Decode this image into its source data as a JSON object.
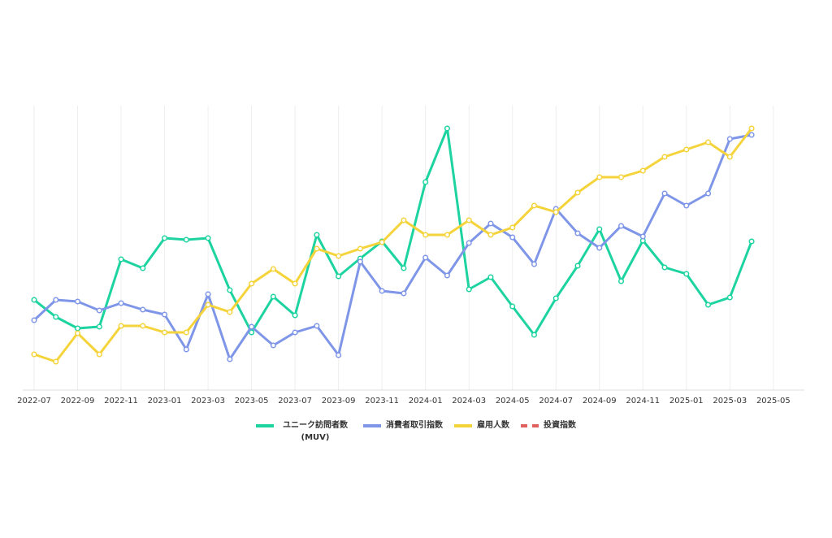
{
  "chart_data": {
    "type": "line",
    "x": [
      "2022-07",
      "2022-08",
      "2022-09",
      "2022-10",
      "2022-11",
      "2022-12",
      "2023-01",
      "2023-02",
      "2023-03",
      "2023-04",
      "2023-05",
      "2023-06",
      "2023-07",
      "2023-08",
      "2023-09",
      "2023-10",
      "2023-11",
      "2023-12",
      "2024-01",
      "2024-02",
      "2024-03",
      "2024-04",
      "2024-05",
      "2024-06",
      "2024-07",
      "2024-08",
      "2024-09",
      "2024-10",
      "2024-11",
      "2024-12",
      "2025-01",
      "2025-02",
      "2025-03",
      "2025-04"
    ],
    "xticks": [
      "2022-07",
      "2022-09",
      "2022-11",
      "2023-01",
      "2023-03",
      "2023-05",
      "2023-07",
      "2023-09",
      "2023-11",
      "2024-01",
      "2024-03",
      "2024-05",
      "2024-07",
      "2024-09",
      "2024-11",
      "2025-01",
      "2025-03",
      "2025-05"
    ],
    "ylim": [
      0,
      350
    ],
    "grid": true,
    "legend": "bottom",
    "series": [
      {
        "name": "ユニーク訪問者数 (MUV)",
        "color": "#1dd3a0",
        "values": [
          111,
          90,
          76,
          78,
          161,
          150,
          187,
          185,
          187,
          123,
          71,
          115,
          92,
          191,
          140,
          162,
          183,
          150,
          256,
          322,
          124,
          139,
          103,
          68,
          113,
          153,
          198,
          134,
          184,
          151,
          143,
          105,
          114,
          183
        ]
      },
      {
        "name": "消費者取引指数",
        "color": "#7f96e8",
        "values": [
          86,
          111,
          109,
          98,
          107,
          99,
          93,
          50,
          118,
          38,
          78,
          55,
          71,
          79,
          43,
          158,
          122,
          119,
          163,
          141,
          181,
          205,
          188,
          155,
          223,
          193,
          175,
          202,
          189,
          242,
          227,
          242,
          309,
          314
        ]
      },
      {
        "name": "雇用人数",
        "color": "#f5d33a",
        "values": [
          44,
          35,
          70,
          44,
          79,
          79,
          71,
          71,
          105,
          96,
          131,
          149,
          131,
          174,
          165,
          174,
          182,
          209,
          191,
          191,
          209,
          191,
          200,
          227,
          219,
          243,
          262,
          262,
          270,
          287,
          296,
          305,
          287,
          322
        ]
      },
      {
        "name": "投資指数",
        "color": "#e06060",
        "dashed": true,
        "values": [
          null,
          null,
          null,
          null,
          null,
          null,
          null,
          null,
          null,
          null,
          null,
          null,
          null,
          null,
          null,
          null,
          null,
          null,
          null,
          null,
          null,
          null,
          null,
          null,
          null,
          null,
          null,
          null,
          null,
          null,
          null,
          null,
          null,
          null
        ]
      }
    ]
  }
}
